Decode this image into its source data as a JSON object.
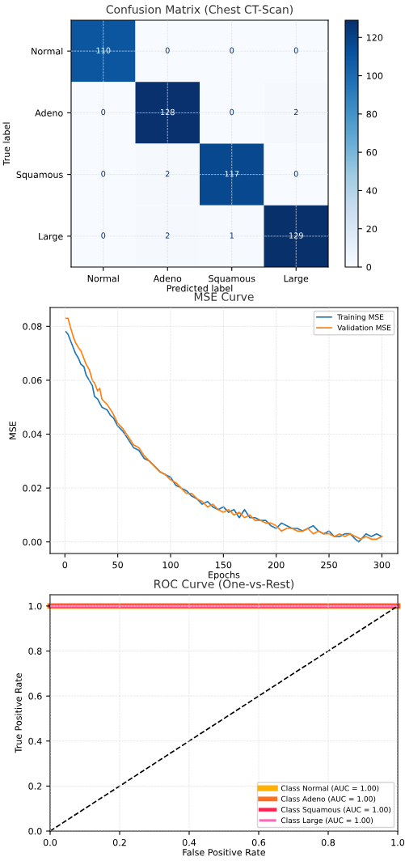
{
  "chart_data": [
    {
      "type": "heatmap",
      "title": "Confusion Matrix (Chest CT-Scan)",
      "xlabel": "Predicted label",
      "ylabel": "True label",
      "categories": [
        "Normal",
        "Adeno",
        "Squamous",
        "Large"
      ],
      "y_categories": [
        "Normal",
        "Adeno",
        "Squamous",
        "Large"
      ],
      "cells": [
        [
          110,
          0,
          0,
          0
        ],
        [
          0,
          128,
          0,
          2
        ],
        [
          0,
          2,
          117,
          0
        ],
        [
          0,
          2,
          1,
          129
        ]
      ],
      "clim": [
        0,
        129
      ],
      "cticks": [
        0,
        20,
        40,
        60,
        80,
        100,
        120
      ],
      "grid": true,
      "data_labels": true
    },
    {
      "type": "line",
      "title": "MSE Curve",
      "xlabel": "Epochs",
      "ylabel": "MSE",
      "xlim": [
        -14,
        315
      ],
      "xticks": [
        0,
        50,
        100,
        150,
        200,
        250,
        300
      ],
      "ylim": [
        -0.0043,
        0.087
      ],
      "yticks": [
        {
          "value": 0,
          "label": "0.00"
        },
        {
          "value": 0.02,
          "label": "0.02"
        },
        {
          "value": 0.04,
          "label": "0.04"
        },
        {
          "value": 0.06,
          "label": "0.06"
        },
        {
          "value": 0.08,
          "label": "0.08"
        }
      ],
      "grid": true,
      "legend": "top right",
      "series": [
        {
          "name": "Training MSE",
          "color": "#1f77b4",
          "x": [
            1,
            3,
            5,
            8,
            10,
            13,
            15,
            18,
            20,
            23,
            26,
            28,
            31,
            35,
            40,
            43,
            46,
            50,
            55,
            60,
            65,
            70,
            75,
            80,
            85,
            90,
            95,
            100,
            105,
            110,
            115,
            120,
            125,
            130,
            135,
            140,
            145,
            150,
            155,
            160,
            165,
            170,
            175,
            180,
            185,
            190,
            195,
            200,
            205,
            210,
            215,
            220,
            225,
            230,
            235,
            240,
            245,
            250,
            255,
            260,
            265,
            270,
            275,
            278,
            285,
            290,
            295,
            300
          ],
          "values": [
            0.078,
            0.077,
            0.075,
            0.072,
            0.07,
            0.068,
            0.066,
            0.065,
            0.062,
            0.06,
            0.058,
            0.054,
            0.053,
            0.05,
            0.049,
            0.047,
            0.046,
            0.043,
            0.041,
            0.038,
            0.035,
            0.034,
            0.031,
            0.03,
            0.028,
            0.026,
            0.025,
            0.024,
            0.021,
            0.02,
            0.019,
            0.017,
            0.016,
            0.014,
            0.015,
            0.013,
            0.012,
            0.013,
            0.011,
            0.012,
            0.009,
            0.012,
            0.009,
            0.009,
            0.008,
            0.008,
            0.006,
            0.005,
            0.007,
            0.006,
            0.005,
            0.005,
            0.004,
            0.005,
            0.006,
            0.004,
            0.003,
            0.004,
            0.002,
            0.002,
            0.003,
            0.003,
            0.001,
            0.0,
            0.003,
            0.002,
            0.003,
            0.002
          ]
        },
        {
          "name": "Validation MSE",
          "color": "#ff7f0e",
          "x": [
            1,
            3,
            5,
            8,
            10,
            13,
            15,
            18,
            20,
            23,
            26,
            28,
            31,
            33,
            35,
            40,
            45,
            50,
            55,
            60,
            65,
            70,
            75,
            80,
            85,
            90,
            95,
            100,
            105,
            110,
            115,
            120,
            125,
            130,
            135,
            140,
            145,
            150,
            155,
            160,
            165,
            170,
            175,
            180,
            185,
            190,
            195,
            200,
            205,
            210,
            215,
            220,
            225,
            230,
            235,
            240,
            245,
            250,
            255,
            260,
            265,
            270,
            275,
            280,
            285,
            290,
            295,
            300
          ],
          "values": [
            0.083,
            0.083,
            0.08,
            0.076,
            0.074,
            0.072,
            0.071,
            0.068,
            0.066,
            0.064,
            0.06,
            0.059,
            0.056,
            0.057,
            0.053,
            0.051,
            0.048,
            0.044,
            0.042,
            0.039,
            0.036,
            0.035,
            0.032,
            0.03,
            0.028,
            0.026,
            0.025,
            0.023,
            0.022,
            0.02,
            0.018,
            0.018,
            0.016,
            0.015,
            0.013,
            0.014,
            0.012,
            0.011,
            0.012,
            0.01,
            0.011,
            0.009,
            0.01,
            0.008,
            0.008,
            0.007,
            0.007,
            0.006,
            0.004,
            0.005,
            0.005,
            0.004,
            0.004,
            0.005,
            0.003,
            0.004,
            0.003,
            0.003,
            0.002,
            0.003,
            0.002,
            0.003,
            0.002,
            0.001,
            0.002,
            0.001,
            0.001,
            0.002
          ]
        }
      ]
    },
    {
      "type": "line",
      "title": "ROC Curve (One-vs-Rest)",
      "xlabel": "False Positive Rate",
      "ylabel": "True Positive Rate",
      "xlim": [
        0,
        1
      ],
      "xticks": [
        {
          "value": 0,
          "label": "0.0"
        },
        0.2,
        0.4,
        0.6,
        0.8,
        {
          "value": 1,
          "label": "1.0"
        }
      ],
      "ylim": [
        0,
        1.05
      ],
      "yticks": [
        {
          "value": 0,
          "label": "0.0"
        },
        0.2,
        0.4,
        0.6,
        0.8,
        {
          "value": 1,
          "label": "1.0"
        }
      ],
      "grid": true,
      "legend": "bottom right",
      "series": [
        {
          "name": "Class Normal (AUC = 1.00)",
          "color": "#ffb000",
          "x": [
            0,
            1
          ],
          "values": [
            1,
            1
          ]
        },
        {
          "name": "Class Adeno (AUC = 1.00)",
          "color": "#ff7020",
          "x": [
            0,
            1
          ],
          "values": [
            1,
            1
          ]
        },
        {
          "name": "Class Squamous (AUC = 1.00)",
          "color": "#ff2050",
          "x": [
            0,
            1
          ],
          "values": [
            1,
            1
          ]
        },
        {
          "name": "Class Large (AUC = 1.00)",
          "color": "#ff69b4",
          "x": [
            0,
            1
          ],
          "values": [
            1,
            1
          ]
        },
        {
          "color": "#000000",
          "line_style": "dashed",
          "x": [
            0,
            1
          ],
          "values": [
            0,
            1
          ]
        }
      ]
    }
  ]
}
